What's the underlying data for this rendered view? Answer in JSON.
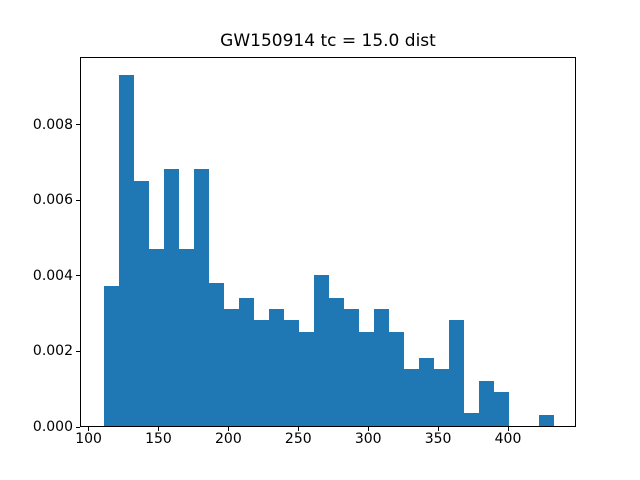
{
  "title": "GW150914 tc = 15.0 dist",
  "colors": {
    "bar": "#1f77b4",
    "axis": "#000000",
    "text": "#000000",
    "background": "#ffffff"
  },
  "chart_data": {
    "type": "bar",
    "subtype": "histogram",
    "title": "GW150914 tc = 15.0 dist",
    "xlabel": "",
    "ylabel": "",
    "grid": false,
    "legend": null,
    "xlim": [
      93.875,
      448.625
    ],
    "ylim": [
      0,
      0.0098
    ],
    "xticks": {
      "values": [
        100,
        150,
        200,
        250,
        300,
        350,
        400
      ],
      "labels": [
        "100",
        "150",
        "200",
        "250",
        "300",
        "350",
        "400"
      ]
    },
    "yticks": {
      "values": [
        0.0,
        0.002,
        0.004,
        0.006,
        0.008
      ],
      "labels": [
        "0.000",
        "0.002",
        "0.004",
        "0.006",
        "0.008"
      ]
    },
    "bin_edges": [
      110.0,
      120.75,
      131.5,
      142.25,
      153.0,
      163.75,
      174.5,
      185.25,
      196.0,
      206.75,
      217.5,
      228.25,
      239.0,
      249.75,
      260.5,
      271.25,
      282.0,
      292.75,
      303.5,
      314.25,
      325.0,
      335.75,
      346.5,
      357.25,
      368.0,
      378.75,
      389.5,
      400.25,
      411.0,
      421.75,
      432.5
    ],
    "values": [
      0.0037,
      0.0093,
      0.0065,
      0.0047,
      0.0068,
      0.0047,
      0.0068,
      0.0038,
      0.0031,
      0.0034,
      0.0028,
      0.0031,
      0.0028,
      0.0025,
      0.004,
      0.0034,
      0.0031,
      0.0025,
      0.0031,
      0.0025,
      0.0015,
      0.0018,
      0.0015,
      0.0028,
      0.00035,
      0.0012,
      0.0009,
      0,
      0,
      0.0003
    ]
  }
}
